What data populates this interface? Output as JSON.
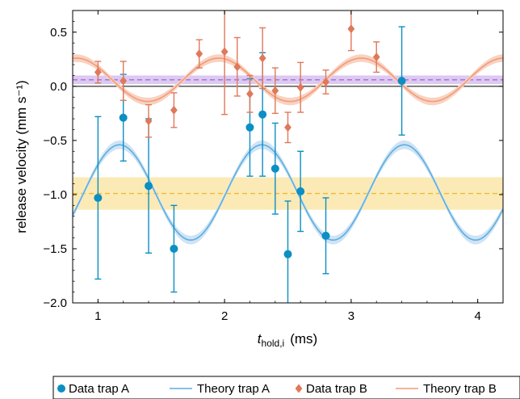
{
  "chart_data": {
    "type": "scatter",
    "ylabel": "release velocity (mm s⁻¹)",
    "xlabel_main": "t",
    "xlabel_sub": "hold,i",
    "xlabel_unit": "(ms)",
    "xlim": [
      0.8,
      4.2
    ],
    "ylim": [
      -2.0,
      0.7
    ],
    "xticks": [
      1,
      2,
      3,
      4
    ],
    "yticks": [
      -2.0,
      -1.5,
      -1.0,
      -0.5,
      0.0,
      0.5
    ],
    "xtick_labels": [
      "1",
      "2",
      "3",
      "4"
    ],
    "ytick_labels": [
      "−2.0",
      "−1.5",
      "−1.0",
      "−0.5",
      "0.0",
      "0.5"
    ],
    "zero_line": true,
    "legend_position": "bottom",
    "series": [
      {
        "name": "Data trap A",
        "kind": "errorbar",
        "color": "#0b8fc4",
        "marker": "circle",
        "x": [
          1.0,
          1.2,
          1.4,
          1.6,
          2.2,
          2.3,
          2.4,
          2.5,
          2.6,
          2.8,
          3.4
        ],
        "y": [
          -1.03,
          -0.29,
          -0.92,
          -1.5,
          -0.38,
          -0.26,
          -0.76,
          -1.55,
          -0.97,
          -1.38,
          0.05
        ],
        "yerr": [
          0.75,
          0.4,
          0.62,
          0.4,
          0.45,
          0.57,
          0.42,
          0.49,
          0.37,
          0.35,
          0.5
        ]
      },
      {
        "name": "Theory trap A",
        "kind": "line",
        "color": "#5aaee0",
        "band_color": "#cfe3f5",
        "offset": -0.98,
        "amplitude": 0.44,
        "period": 1.125,
        "peak_x": 1.17,
        "band_halfwidth": 0.04
      },
      {
        "name": "Data trap B",
        "kind": "errorbar",
        "color": "#e0785a",
        "marker": "diamond",
        "x": [
          1.0,
          1.2,
          1.4,
          1.6,
          1.8,
          2.0,
          2.1,
          2.2,
          2.3,
          2.4,
          2.5,
          2.6,
          2.8,
          3.0,
          3.2
        ],
        "y": [
          0.13,
          0.05,
          -0.32,
          -0.22,
          0.3,
          0.32,
          0.18,
          -0.07,
          0.26,
          -0.04,
          -0.38,
          -0.01,
          0.04,
          0.53,
          0.27
        ],
        "yerr": [
          0.1,
          0.18,
          0.15,
          0.16,
          0.13,
          0.58,
          0.27,
          0.17,
          0.28,
          0.21,
          0.14,
          0.23,
          0.11,
          0.2,
          0.14
        ],
        "clip_top": [
          false,
          false,
          false,
          false,
          false,
          true,
          false,
          false,
          false,
          false,
          false,
          false,
          false,
          true,
          false
        ]
      },
      {
        "name": "Theory trap B",
        "kind": "line",
        "color": "#f19b7a",
        "band_color": "#f9d2c1",
        "offset": 0.06,
        "amplitude": 0.2,
        "period": 1.125,
        "peak_x": 0.83,
        "band_halfwidth": 0.035
      }
    ],
    "mean_bands": [
      {
        "series": "Theory trap A",
        "y": -0.99,
        "halfwidth": 0.15,
        "fill": "#fbeab5",
        "line": "#f2b83a"
      },
      {
        "series": "Theory trap B",
        "y": 0.06,
        "halfwidth": 0.04,
        "fill": "#dcc9f1",
        "line": "#a56bd4"
      }
    ]
  }
}
